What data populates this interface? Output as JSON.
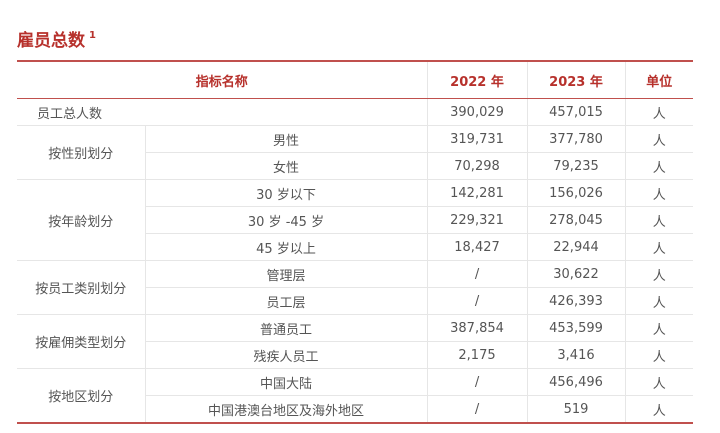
{
  "title": "雇员总数",
  "title_footnote": "1",
  "header": {
    "indicator": "指标名称",
    "y2022": "2022 年",
    "y2023": "2023 年",
    "unit": "单位"
  },
  "total": {
    "label": "员工总人数",
    "y2022": "390,029",
    "y2023": "457,015",
    "unit": "人"
  },
  "groups": [
    {
      "label": "按性别划分",
      "rows": [
        {
          "label": "男性",
          "y2022": "319,731",
          "y2023": "377,780",
          "unit": "人"
        },
        {
          "label": "女性",
          "y2022": "70,298",
          "y2023": "79,235",
          "unit": "人"
        }
      ]
    },
    {
      "label": "按年龄划分",
      "rows": [
        {
          "label": "30 岁以下",
          "y2022": "142,281",
          "y2023": "156,026",
          "unit": "人"
        },
        {
          "label": "30 岁 -45 岁",
          "y2022": "229,321",
          "y2023": "278,045",
          "unit": "人"
        },
        {
          "label": "45 岁以上",
          "y2022": "18,427",
          "y2023": "22,944",
          "unit": "人"
        }
      ]
    },
    {
      "label": "按员工类别划分",
      "rows": [
        {
          "label": "管理层",
          "y2022": "/",
          "y2023": "30,622",
          "unit": "人"
        },
        {
          "label": "员工层",
          "y2022": "/",
          "y2023": "426,393",
          "unit": "人"
        }
      ]
    },
    {
      "label": "按雇佣类型划分",
      "rows": [
        {
          "label": "普通员工",
          "y2022": "387,854",
          "y2023": "453,599",
          "unit": "人"
        },
        {
          "label": "残疾人员工",
          "y2022": "2,175",
          "y2023": "3,416",
          "unit": "人"
        }
      ]
    },
    {
      "label": "按地区划分",
      "rows": [
        {
          "label": "中国大陆",
          "y2022": "/",
          "y2023": "456,496",
          "unit": "人"
        },
        {
          "label": "中国港澳台地区及海外地区",
          "y2022": "/",
          "y2023": "519",
          "unit": "人"
        }
      ]
    }
  ]
}
